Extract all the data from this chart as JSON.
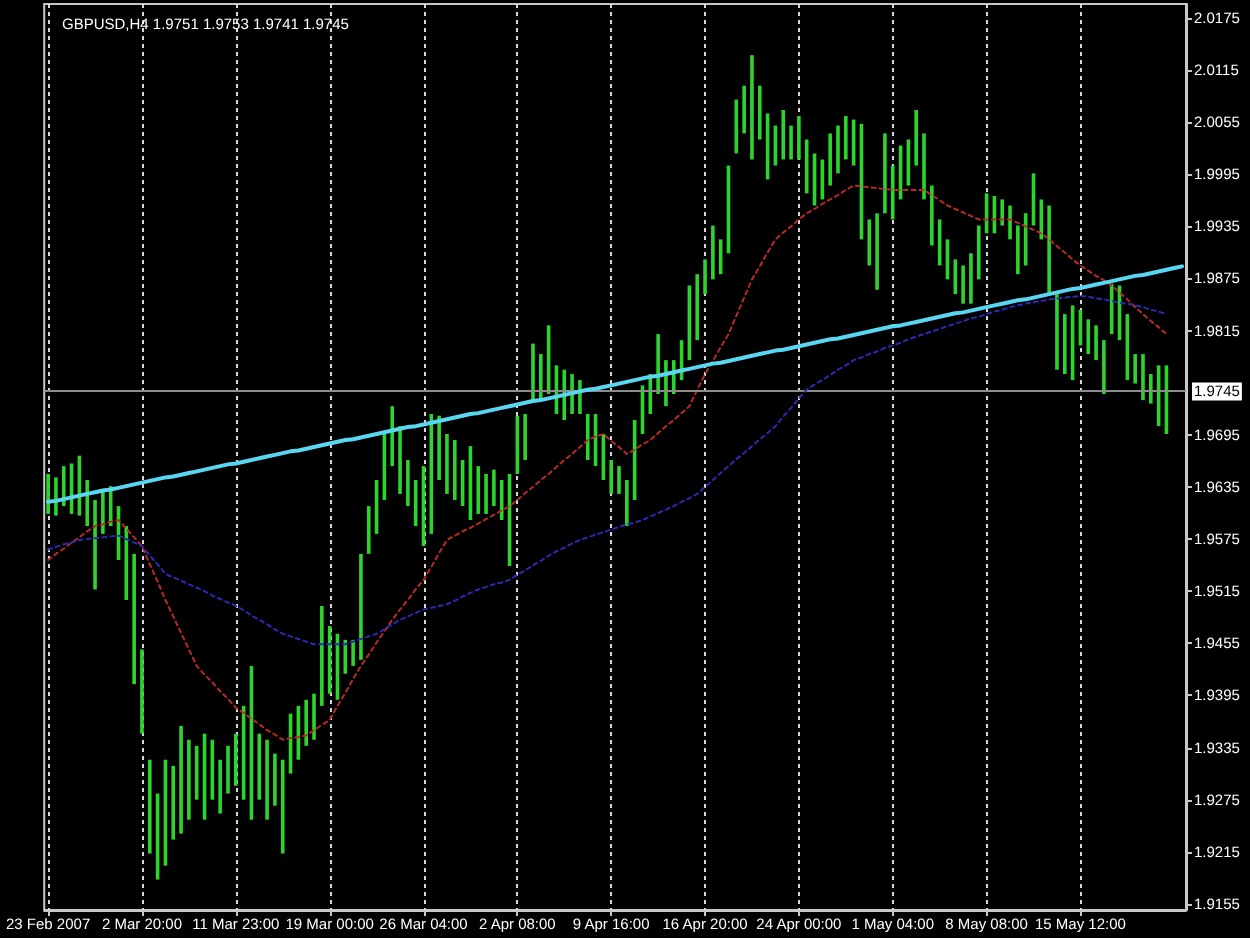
{
  "chart_data": {
    "type": "bar",
    "title": "GBPUSD,H4 1.9751 1.9753 1.9741 1.9745",
    "categories": [
      "23 Feb 2007",
      null,
      null,
      null,
      null,
      null,
      null,
      null,
      null,
      null,
      null,
      null,
      "2 Mar 20:00",
      null,
      null,
      null,
      null,
      null,
      null,
      null,
      null,
      null,
      null,
      null,
      "11 Mar 23:00",
      null,
      null,
      null,
      null,
      null,
      null,
      null,
      null,
      null,
      null,
      null,
      "19 Mar 00:00",
      null,
      null,
      null,
      null,
      null,
      null,
      null,
      null,
      null,
      null,
      null,
      "26 Mar 04:00",
      null,
      null,
      null,
      null,
      null,
      null,
      null,
      null,
      null,
      null,
      null,
      "2 Apr 08:00",
      null,
      null,
      null,
      null,
      null,
      null,
      null,
      null,
      null,
      null,
      null,
      "9 Apr 16:00",
      null,
      null,
      null,
      null,
      null,
      null,
      null,
      null,
      null,
      null,
      null,
      "16 Apr 20:00",
      null,
      null,
      null,
      null,
      null,
      null,
      null,
      null,
      null,
      null,
      null,
      "24 Apr 00:00",
      null,
      null,
      null,
      null,
      null,
      null,
      null,
      null,
      null,
      null,
      null,
      "1 May 04:00",
      null,
      null,
      null,
      null,
      null,
      null,
      null,
      null,
      null,
      null,
      null,
      "8 May 08:00",
      null,
      null,
      null,
      null,
      null,
      null,
      null,
      null,
      null,
      null,
      null,
      "15 May 12:00",
      null,
      null,
      null,
      null,
      null,
      null,
      null,
      null,
      null,
      null,
      null,
      null,
      null
    ],
    "series": [
      {
        "color": "#2ed42e",
        "base": [
          1.9604,
          1.9602,
          1.9613,
          1.9604,
          1.9602,
          1.959,
          1.9517,
          1.9581,
          1.959,
          1.9551,
          1.9505,
          1.9408,
          1.9351,
          1.9213,
          1.9183,
          1.9199,
          1.9229,
          1.9236,
          1.9252,
          1.9275,
          1.9252,
          1.9275,
          1.9259,
          1.9282,
          1.9291,
          1.9275,
          1.9252,
          1.9275,
          1.9252,
          1.9268,
          1.9213,
          1.9305,
          1.9321,
          1.9337,
          1.9344,
          1.9383,
          1.9397,
          1.939,
          1.942,
          1.9429,
          1.9436,
          1.9558,
          1.9581,
          1.962,
          1.9659,
          1.9627,
          1.9613,
          1.959,
          1.9567,
          1.9581,
          1.9643,
          1.9627,
          1.962,
          1.9613,
          1.9597,
          1.9604,
          1.9604,
          1.9613,
          1.9597,
          1.9544,
          1.965,
          1.9666,
          1.9735,
          1.9735,
          1.9742,
          1.9719,
          1.9712,
          1.9719,
          1.9719,
          1.9666,
          1.9659,
          1.9643,
          1.9627,
          1.9627,
          1.959,
          1.962,
          1.9696,
          1.9719,
          1.9742,
          1.9728,
          1.9742,
          1.9758,
          1.9781,
          1.9804,
          1.9857,
          1.9874,
          1.988,
          1.9904,
          2.0019,
          2.0042,
          2.0012,
          2.0035,
          1.9989,
          2.0005,
          2.0012,
          2.0012,
          2.0012,
          1.9973,
          1.9959,
          1.9966,
          1.9982,
          1.9996,
          2.0012,
          2.0005,
          1.992,
          1.989,
          1.9862,
          1.995,
          1.9943,
          1.9966,
          1.9982,
          2.0005,
          1.9966,
          1.9913,
          1.989,
          1.9874,
          1.9857,
          1.9846,
          1.9846,
          1.9874,
          1.9927,
          1.9927,
          1.9936,
          1.992,
          1.988,
          1.989,
          1.9936,
          1.992,
          1.9857,
          1.977,
          1.9765,
          1.9758,
          1.9798,
          1.9788,
          1.9781,
          1.9742,
          1.9811,
          1.9804,
          1.9758,
          1.9754,
          1.9735,
          1.9731,
          1.9705,
          1.9696,
          null,
          null
        ],
        "values": [
          0.0046,
          0.0044,
          0.0046,
          0.0058,
          0.0069,
          0.0053,
          0.0103,
          0.0051,
          0.0046,
          0.0062,
          0.0085,
          0.015,
          0.0097,
          0.0108,
          0.0099,
          0.0122,
          0.0085,
          0.0124,
          0.0092,
          0.0062,
          0.0099,
          0.0069,
          0.0062,
          0.0055,
          0.006,
          0.0108,
          0.0177,
          0.0076,
          0.0092,
          0.006,
          0.0108,
          0.0069,
          0.0062,
          0.0053,
          0.0053,
          0.0115,
          0.0078,
          0.0076,
          0.0039,
          0.003,
          0.0122,
          0.0055,
          0.0062,
          0.0076,
          0.0069,
          0.0078,
          0.0053,
          0.0053,
          0.0092,
          0.0138,
          0.0074,
          0.0069,
          0.0069,
          0.0053,
          0.0085,
          0.0055,
          0.0046,
          0.0042,
          0.0046,
          0.0106,
          0.0067,
          0.0053,
          0.0065,
          0.0053,
          0.0079,
          0.0056,
          0.0058,
          0.0046,
          0.0039,
          0.0053,
          0.006,
          0.0053,
          0.0039,
          0.0032,
          0.0053,
          0.0092,
          0.0056,
          0.0046,
          0.0069,
          0.0053,
          0.0039,
          0.0046,
          0.0086,
          0.0076,
          0.004,
          0.0062,
          0.004,
          0.0101,
          0.0062,
          0.0055,
          0.012,
          0.0062,
          0.0076,
          0.0046,
          0.0057,
          0.0039,
          0.005,
          0.0062,
          0.006,
          0.0046,
          0.006,
          0.0055,
          0.005,
          0.0053,
          0.0133,
          0.0053,
          0.0088,
          0.0092,
          0.0062,
          0.0062,
          0.0053,
          0.0064,
          0.0076,
          0.0069,
          0.0053,
          0.0046,
          0.004,
          0.0044,
          0.0058,
          0.0062,
          0.0046,
          0.0043,
          0.003,
          0.0039,
          0.0056,
          0.006,
          0.006,
          0.0046,
          0.0102,
          0.0087,
          0.0069,
          0.0086,
          0.0041,
          0.004,
          0.004,
          0.0062,
          0.0058,
          0.0063,
          0.0076,
          0.0034,
          0.0053,
          0.0034,
          0.007,
          0.0079,
          null,
          null
        ]
      },
      {
        "type": "line",
        "color": "#b82a2a",
        "line_style": "dotted",
        "values": [
          1.9551,
          1.9558,
          1.9564,
          1.9571,
          1.9577,
          1.9584,
          1.959,
          1.9592,
          1.9595,
          1.9597,
          1.9587,
          1.9577,
          1.9567,
          1.9546,
          1.9526,
          1.9505,
          1.9486,
          1.9467,
          1.9448,
          1.9429,
          1.9419,
          1.941,
          1.94,
          1.9391,
          1.9381,
          1.9375,
          1.9368,
          1.9362,
          1.9355,
          1.935,
          1.9344,
          1.9346,
          1.9347,
          1.9349,
          1.9355,
          1.9361,
          1.9367,
          1.9383,
          1.9398,
          1.9414,
          1.9429,
          1.9442,
          1.9456,
          1.9469,
          1.9482,
          1.9494,
          1.9505,
          1.9517,
          1.9528,
          1.9543,
          1.9559,
          1.9574,
          1.9579,
          1.9584,
          1.9588,
          1.9593,
          1.9598,
          1.9603,
          1.9608,
          1.9613,
          1.962,
          1.9628,
          1.9635,
          1.9643,
          1.965,
          1.9658,
          1.9666,
          1.9673,
          1.9681,
          1.9689,
          1.9693,
          1.9696,
          1.9688,
          1.9681,
          1.9673,
          1.9678,
          1.9684,
          1.9689,
          1.9697,
          1.9705,
          1.9712,
          1.972,
          1.9728,
          1.9747,
          1.9765,
          1.978,
          1.9796,
          1.9811,
          1.9832,
          1.9853,
          1.9874,
          1.9889,
          1.9905,
          1.992,
          1.9928,
          1.9935,
          1.9943,
          1.995,
          1.9955,
          1.9961,
          1.9966,
          1.9971,
          1.9977,
          1.9982,
          1.9981,
          1.998,
          1.9979,
          1.9978,
          1.9977,
          1.9977,
          1.9977,
          1.9977,
          1.9977,
          1.9971,
          1.9965,
          1.9959,
          1.9955,
          1.9951,
          1.9947,
          1.9943,
          1.9943,
          1.9943,
          1.9943,
          1.9943,
          1.9939,
          1.9935,
          1.9931,
          1.9927,
          1.992,
          1.9912,
          1.9905,
          1.9897,
          1.989,
          1.9884,
          1.9878,
          1.9873,
          1.9867,
          1.9859,
          1.9851,
          1.9842,
          1.9834,
          1.9826,
          1.9819,
          1.9811,
          null,
          null
        ]
      },
      {
        "type": "line",
        "color": "#2a2ab4",
        "line_style": "dotted",
        "values": [
          1.9563,
          1.9566,
          1.9569,
          1.9571,
          1.9574,
          1.9575,
          1.9576,
          1.9577,
          1.9578,
          1.9579,
          1.9575,
          1.9571,
          1.9567,
          1.9556,
          1.9546,
          1.9535,
          1.9531,
          1.9527,
          1.9523,
          1.9519,
          1.9515,
          1.951,
          1.9506,
          1.9502,
          1.9498,
          1.9493,
          1.9487,
          1.9482,
          1.9477,
          1.9471,
          1.9466,
          1.9463,
          1.946,
          1.9457,
          1.9454,
          1.9454,
          1.9454,
          1.9454,
          1.9454,
          1.9457,
          1.946,
          1.9463,
          1.9466,
          1.9471,
          1.9477,
          1.9482,
          1.9486,
          1.949,
          1.9494,
          1.9496,
          1.9498,
          1.95,
          1.9504,
          1.9509,
          1.9513,
          1.9517,
          1.952,
          1.9523,
          1.9525,
          1.9528,
          1.9534,
          1.9539,
          1.9545,
          1.955,
          1.9556,
          1.9561,
          1.9565,
          1.957,
          1.9574,
          1.9577,
          1.958,
          1.9583,
          1.9586,
          1.9589,
          1.9592,
          1.9594,
          1.9597,
          1.9601,
          1.9605,
          1.9609,
          1.9613,
          1.9618,
          1.9622,
          1.9627,
          1.9635,
          1.9643,
          1.9651,
          1.9659,
          1.9667,
          1.9674,
          1.9682,
          1.969,
          1.9697,
          1.9705,
          1.9716,
          1.9726,
          1.9737,
          1.9747,
          1.9753,
          1.9758,
          1.9764,
          1.977,
          1.9775,
          1.9781,
          1.9784,
          1.9788,
          1.9791,
          1.9795,
          1.9798,
          1.9801,
          1.9805,
          1.9808,
          1.9811,
          1.9814,
          1.9817,
          1.982,
          1.9823,
          1.9826,
          1.9829,
          1.9831,
          1.9834,
          1.9837,
          1.9839,
          1.9842,
          1.9844,
          1.9846,
          1.9848,
          1.9849,
          1.9851,
          1.9852,
          1.9853,
          1.9854,
          1.9855,
          1.9854,
          1.9852,
          1.9851,
          1.9849,
          1.9847,
          1.9846,
          1.9844,
          1.9842,
          1.9839,
          1.9837,
          1.9834,
          null,
          null
        ]
      },
      {
        "type": "line",
        "color": "#58d6f2",
        "values": [
          1.9618,
          1.9619,
          1.9621,
          1.9623,
          1.9625,
          1.9627,
          1.9629,
          1.9631,
          1.9632,
          1.9634,
          1.9636,
          1.9638,
          1.964,
          1.9642,
          1.9644,
          1.9646,
          1.9647,
          1.9649,
          1.9651,
          1.9653,
          1.9655,
          1.9657,
          1.9659,
          1.9661,
          1.9662,
          1.9664,
          1.9666,
          1.9668,
          1.967,
          1.9672,
          1.9674,
          1.9676,
          1.9677,
          1.9679,
          1.9681,
          1.9683,
          1.9685,
          1.9687,
          1.9689,
          1.969,
          1.9692,
          1.9694,
          1.9696,
          1.9698,
          1.97,
          1.9702,
          1.9704,
          1.9705,
          1.9707,
          1.9709,
          1.9711,
          1.9713,
          1.9715,
          1.9717,
          1.9719,
          1.972,
          1.9722,
          1.9724,
          1.9726,
          1.9728,
          1.973,
          1.9732,
          1.9734,
          1.9735,
          1.9737,
          1.9739,
          1.9741,
          1.9743,
          1.9745,
          1.9747,
          1.9748,
          1.975,
          1.9752,
          1.9754,
          1.9756,
          1.9758,
          1.976,
          1.9762,
          1.9763,
          1.9765,
          1.9767,
          1.9769,
          1.9771,
          1.9773,
          1.9775,
          1.9777,
          1.9778,
          1.978,
          1.9782,
          1.9784,
          1.9786,
          1.9788,
          1.979,
          1.9792,
          1.9793,
          1.9795,
          1.9797,
          1.9799,
          1.9801,
          1.9803,
          1.9805,
          1.9806,
          1.9808,
          1.981,
          1.9812,
          1.9814,
          1.9816,
          1.9818,
          1.982,
          1.9821,
          1.9823,
          1.9825,
          1.9827,
          1.9829,
          1.9831,
          1.9833,
          1.9835,
          1.9836,
          1.9838,
          1.984,
          1.9842,
          1.9844,
          1.9846,
          1.9848,
          1.985,
          1.9851,
          1.9853,
          1.9855,
          1.9857,
          1.9859,
          1.9861,
          1.9863,
          1.9864,
          1.9866,
          1.9868,
          1.987,
          1.9872,
          1.9874,
          1.9876,
          1.9878,
          1.9879,
          1.9881,
          1.9883,
          1.9885,
          1.9887,
          1.9889
        ]
      }
    ],
    "ylim": [
      1.9148,
      2.0191
    ],
    "yticks": [
      1.9155,
      1.9215,
      1.9275,
      1.9335,
      1.9395,
      1.9455,
      1.9515,
      1.9575,
      1.9635,
      1.9695,
      1.9815,
      1.9875,
      1.9935,
      1.9995,
      2.0055,
      2.0115,
      2.0175
    ],
    "ref_lines": [
      {
        "axis": "y",
        "value": 1.9745,
        "label": "1.9745",
        "color": "#8c8c8c"
      }
    ],
    "grid": "x",
    "marker": "none"
  }
}
